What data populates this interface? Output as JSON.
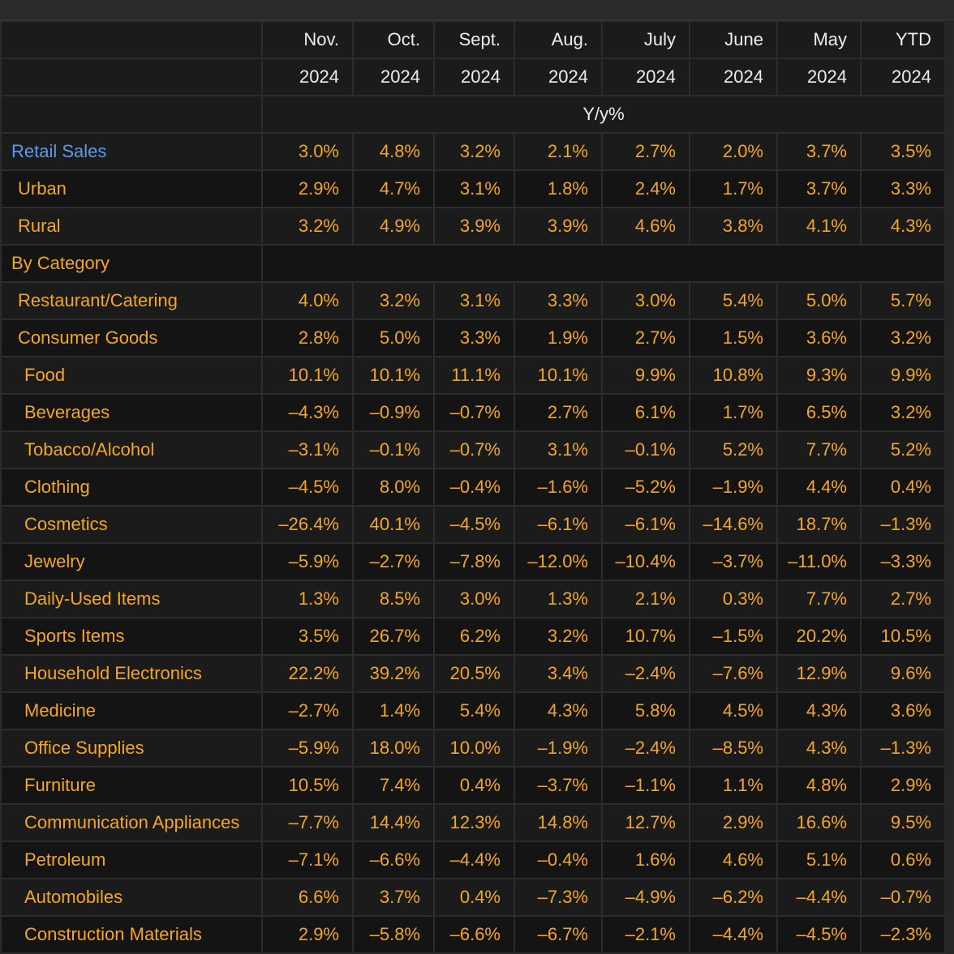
{
  "columns": [
    {
      "month": "Nov.",
      "year": "2024"
    },
    {
      "month": "Oct.",
      "year": "2024"
    },
    {
      "month": "Sept.",
      "year": "2024"
    },
    {
      "month": "Aug.",
      "year": "2024"
    },
    {
      "month": "July",
      "year": "2024"
    },
    {
      "month": "June",
      "year": "2024"
    },
    {
      "month": "May",
      "year": "2024"
    },
    {
      "month": "YTD",
      "year": "2024"
    }
  ],
  "unit": "Y/y%",
  "colors": {
    "value": "#f5a623",
    "highlight": "#5a9bf0",
    "header": "#ededed",
    "background": "#141414"
  },
  "chart_data": {
    "type": "table",
    "columns": [
      "Nov. 2024",
      "Oct. 2024",
      "Sept. 2024",
      "Aug. 2024",
      "July 2024",
      "June 2024",
      "May 2024",
      "YTD 2024"
    ],
    "rows": [
      {
        "label": "Retail Sales",
        "indent": 0,
        "highlight": true,
        "values": [
          "3.0%",
          "4.8%",
          "3.2%",
          "2.1%",
          "2.7%",
          "2.0%",
          "3.7%",
          "3.5%"
        ]
      },
      {
        "label": "Urban",
        "indent": 1,
        "values": [
          "2.9%",
          "4.7%",
          "3.1%",
          "1.8%",
          "2.4%",
          "1.7%",
          "3.7%",
          "3.3%"
        ]
      },
      {
        "label": "Rural",
        "indent": 1,
        "values": [
          "3.2%",
          "4.9%",
          "3.9%",
          "3.9%",
          "4.6%",
          "3.8%",
          "4.1%",
          "4.3%"
        ]
      },
      {
        "label": "By Category",
        "indent": 0,
        "section": true,
        "values": []
      },
      {
        "label": "Restaurant/Catering",
        "indent": 1,
        "values": [
          "4.0%",
          "3.2%",
          "3.1%",
          "3.3%",
          "3.0%",
          "5.4%",
          "5.0%",
          "5.7%"
        ]
      },
      {
        "label": "Consumer Goods",
        "indent": 1,
        "values": [
          "2.8%",
          "5.0%",
          "3.3%",
          "1.9%",
          "2.7%",
          "1.5%",
          "3.6%",
          "3.2%"
        ]
      },
      {
        "label": "Food",
        "indent": 2,
        "values": [
          "10.1%",
          "10.1%",
          "11.1%",
          "10.1%",
          "9.9%",
          "10.8%",
          "9.3%",
          "9.9%"
        ]
      },
      {
        "label": "Beverages",
        "indent": 2,
        "values": [
          "–4.3%",
          "–0.9%",
          "–0.7%",
          "2.7%",
          "6.1%",
          "1.7%",
          "6.5%",
          "3.2%"
        ]
      },
      {
        "label": "Tobacco/Alcohol",
        "indent": 2,
        "values": [
          "–3.1%",
          "–0.1%",
          "–0.7%",
          "3.1%",
          "–0.1%",
          "5.2%",
          "7.7%",
          "5.2%"
        ]
      },
      {
        "label": "Clothing",
        "indent": 2,
        "values": [
          "–4.5%",
          "8.0%",
          "–0.4%",
          "–1.6%",
          "–5.2%",
          "–1.9%",
          "4.4%",
          "0.4%"
        ]
      },
      {
        "label": "Cosmetics",
        "indent": 2,
        "values": [
          "–26.4%",
          "40.1%",
          "–4.5%",
          "–6.1%",
          "–6.1%",
          "–14.6%",
          "18.7%",
          "–1.3%"
        ]
      },
      {
        "label": "Jewelry",
        "indent": 2,
        "values": [
          "–5.9%",
          "–2.7%",
          "–7.8%",
          "–12.0%",
          "–10.4%",
          "–3.7%",
          "–11.0%",
          "–3.3%"
        ]
      },
      {
        "label": "Daily-Used Items",
        "indent": 2,
        "values": [
          "1.3%",
          "8.5%",
          "3.0%",
          "1.3%",
          "2.1%",
          "0.3%",
          "7.7%",
          "2.7%"
        ]
      },
      {
        "label": "Sports Items",
        "indent": 2,
        "values": [
          "3.5%",
          "26.7%",
          "6.2%",
          "3.2%",
          "10.7%",
          "–1.5%",
          "20.2%",
          "10.5%"
        ]
      },
      {
        "label": "Household Electronics",
        "indent": 2,
        "values": [
          "22.2%",
          "39.2%",
          "20.5%",
          "3.4%",
          "–2.4%",
          "–7.6%",
          "12.9%",
          "9.6%"
        ]
      },
      {
        "label": "Medicine",
        "indent": 2,
        "values": [
          "–2.7%",
          "1.4%",
          "5.4%",
          "4.3%",
          "5.8%",
          "4.5%",
          "4.3%",
          "3.6%"
        ]
      },
      {
        "label": "Office Supplies",
        "indent": 2,
        "values": [
          "–5.9%",
          "18.0%",
          "10.0%",
          "–1.9%",
          "–2.4%",
          "–8.5%",
          "4.3%",
          "–1.3%"
        ]
      },
      {
        "label": "Furniture",
        "indent": 2,
        "values": [
          "10.5%",
          "7.4%",
          "0.4%",
          "–3.7%",
          "–1.1%",
          "1.1%",
          "4.8%",
          "2.9%"
        ]
      },
      {
        "label": "Communication Appliances",
        "indent": 2,
        "values": [
          "–7.7%",
          "14.4%",
          "12.3%",
          "14.8%",
          "12.7%",
          "2.9%",
          "16.6%",
          "9.5%"
        ]
      },
      {
        "label": "Petroleum",
        "indent": 2,
        "values": [
          "–7.1%",
          "–6.6%",
          "–4.4%",
          "–0.4%",
          "1.6%",
          "4.6%",
          "5.1%",
          "0.6%"
        ]
      },
      {
        "label": "Automobiles",
        "indent": 2,
        "values": [
          "6.6%",
          "3.7%",
          "0.4%",
          "–7.3%",
          "–4.9%",
          "–6.2%",
          "–4.4%",
          "–0.7%"
        ]
      },
      {
        "label": "Construction Materials",
        "indent": 2,
        "values": [
          "2.9%",
          "–5.8%",
          "–6.6%",
          "–6.7%",
          "–2.1%",
          "–4.4%",
          "–4.5%",
          "–2.3%"
        ]
      }
    ]
  }
}
